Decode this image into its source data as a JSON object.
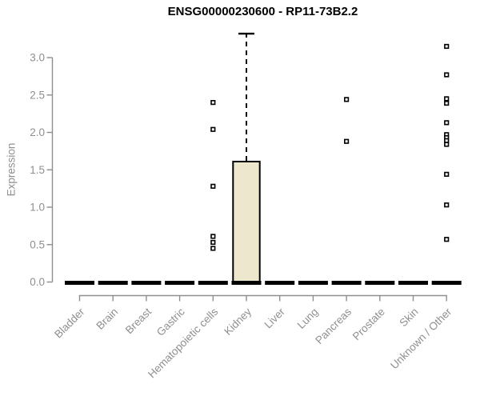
{
  "chart_data": {
    "type": "boxplot",
    "title": "ENSG00000230600 - RP11-73B2.2",
    "ylabel": "Expression",
    "xlabel": "",
    "ylim": [
      0.0,
      3.35
    ],
    "yticks": [
      0.0,
      0.5,
      1.0,
      1.5,
      2.0,
      2.5,
      3.0
    ],
    "grid": false,
    "legend": "none",
    "categories": [
      "Bladder",
      "Brain",
      "Breast",
      "Gastric",
      "Hematopoietic cells",
      "Kidney",
      "Liver",
      "Lung",
      "Pancreas",
      "Prostate",
      "Skin",
      "Unknown / Other"
    ],
    "boxes": [
      {
        "category": "Bladder",
        "low": 0,
        "q1": 0,
        "median": 0,
        "q3": 0,
        "high": 0,
        "outliers": []
      },
      {
        "category": "Brain",
        "low": 0,
        "q1": 0,
        "median": 0,
        "q3": 0,
        "high": 0,
        "outliers": []
      },
      {
        "category": "Breast",
        "low": 0,
        "q1": 0,
        "median": 0,
        "q3": 0,
        "high": 0,
        "outliers": []
      },
      {
        "category": "Gastric",
        "low": 0,
        "q1": 0,
        "median": 0,
        "q3": 0,
        "high": 0,
        "outliers": []
      },
      {
        "category": "Hematopoietic cells",
        "low": 0,
        "q1": 0,
        "median": 0,
        "q3": 0,
        "high": 0,
        "outliers": [
          2.4,
          2.04,
          1.28,
          0.61,
          0.53,
          0.45
        ]
      },
      {
        "category": "Kidney",
        "low": 0,
        "q1": 0,
        "median": 0,
        "q3": 1.61,
        "high": 3.32,
        "outliers": []
      },
      {
        "category": "Liver",
        "low": 0,
        "q1": 0,
        "median": 0,
        "q3": 0,
        "high": 0,
        "outliers": []
      },
      {
        "category": "Lung",
        "low": 0,
        "q1": 0,
        "median": 0,
        "q3": 0,
        "high": 0,
        "outliers": []
      },
      {
        "category": "Pancreas",
        "low": 0,
        "q1": 0,
        "median": 0,
        "q3": 0,
        "high": 0,
        "outliers": [
          2.44,
          1.88
        ]
      },
      {
        "category": "Prostate",
        "low": 0,
        "q1": 0,
        "median": 0,
        "q3": 0,
        "high": 0,
        "outliers": []
      },
      {
        "category": "Skin",
        "low": 0,
        "q1": 0,
        "median": 0,
        "q3": 0,
        "high": 0,
        "outliers": []
      },
      {
        "category": "Unknown / Other",
        "low": 0,
        "q1": 0,
        "median": 0,
        "q3": 0,
        "high": 0,
        "outliers": [
          3.15,
          2.77,
          2.45,
          2.39,
          2.13,
          1.97,
          1.93,
          1.89,
          1.84,
          1.44,
          1.03,
          0.57
        ]
      }
    ],
    "colors": {
      "box_fill": "#EDE8CD",
      "box_border": "#000000",
      "median": "#000000",
      "whisker": "#000000",
      "outlier_fill": "#ffffff",
      "outlier_border": "#000000",
      "axis": "#8f8f8f",
      "tick_label": "#8f8f8f",
      "title": "#000000"
    }
  }
}
